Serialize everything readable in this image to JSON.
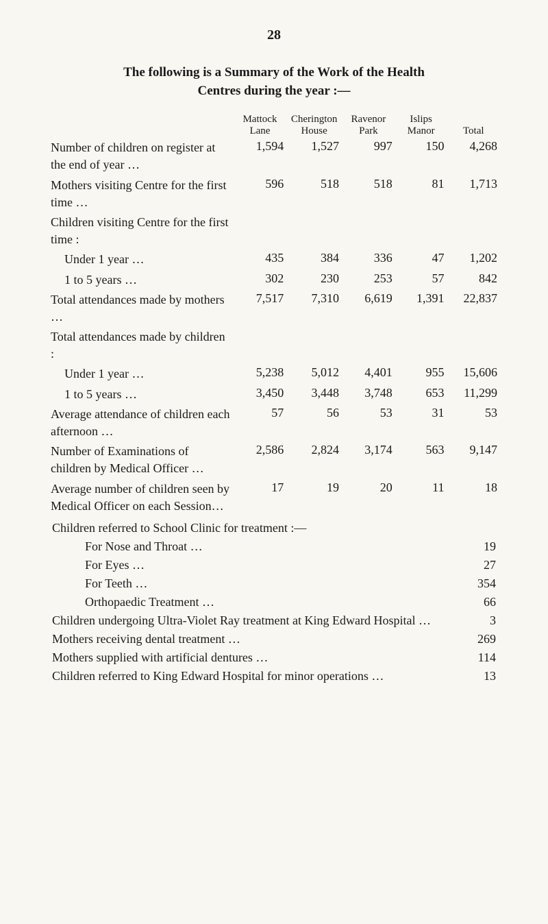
{
  "page_number": "28",
  "heading": {
    "line1": "The following is a Summary of the Work of the Health",
    "line2": "Centres during the year :—"
  },
  "columns": [
    {
      "line1": "Mattock",
      "line2": "Lane"
    },
    {
      "line1": "Cherington",
      "line2": "House"
    },
    {
      "line1": "Ravenor",
      "line2": "Park"
    },
    {
      "line1": "Islips",
      "line2": "Manor"
    },
    {
      "line1": "",
      "line2": "Total"
    }
  ],
  "rows": [
    {
      "label": "Number of children on register at the end of year …",
      "vals": [
        "1,594",
        "1,527",
        "997",
        "150",
        "4,268"
      ]
    },
    {
      "label": "Mothers visiting Centre for the first time …",
      "vals": [
        "596",
        "518",
        "518",
        "81",
        "1,713"
      ]
    },
    {
      "label": "Children visiting Centre for the first time :",
      "vals": [
        "",
        "",
        "",
        "",
        ""
      ]
    },
    {
      "label": "Under 1 year …",
      "indent": true,
      "vals": [
        "435",
        "384",
        "336",
        "47",
        "1,202"
      ]
    },
    {
      "label": "1 to 5 years …",
      "indent": true,
      "vals": [
        "302",
        "230",
        "253",
        "57",
        "842"
      ]
    },
    {
      "label": "Total attendances made by mothers …",
      "vals": [
        "7,517",
        "7,310",
        "6,619",
        "1,391",
        "22,837"
      ]
    },
    {
      "label": "Total attendances made by children :",
      "vals": [
        "",
        "",
        "",
        "",
        ""
      ]
    },
    {
      "label": "Under 1 year …",
      "indent": true,
      "vals": [
        "5,238",
        "5,012",
        "4,401",
        "955",
        "15,606"
      ]
    },
    {
      "label": "1 to 5 years …",
      "indent": true,
      "vals": [
        "3,450",
        "3,448",
        "3,748",
        "653",
        "11,299"
      ]
    },
    {
      "label": "Average attendance of children each afternoon …",
      "vals": [
        "57",
        "56",
        "53",
        "31",
        "53"
      ]
    },
    {
      "label": "Number of Examinations of children by Medical Officer …",
      "vals": [
        "2,586",
        "2,824",
        "3,174",
        "563",
        "9,147"
      ]
    },
    {
      "label": "Average number of children seen by Medical Officer on each Session…",
      "vals": [
        "17",
        "19",
        "20",
        "11",
        "18"
      ]
    }
  ],
  "referred_heading": "Children referred to School Clinic for treatment :—",
  "referred": [
    {
      "label": "For Nose and Throat …",
      "val": "19",
      "indent": true
    },
    {
      "label": "For Eyes …",
      "val": "27",
      "indent": true
    },
    {
      "label": "For Teeth …",
      "val": "354",
      "indent": true
    },
    {
      "label": "Orthopaedic Treatment …",
      "val": "66",
      "indent": true
    },
    {
      "label": "Children undergoing Ultra-Violet Ray treatment at King Edward Hospital …",
      "val": "3",
      "indent": false
    },
    {
      "label": "Mothers receiving dental treatment …",
      "val": "269",
      "indent": false
    },
    {
      "label": "Mothers supplied with artificial dentures …",
      "val": "114",
      "indent": false
    },
    {
      "label": "Children referred to King Edward Hospital for minor operations …",
      "val": "13",
      "indent": false
    }
  ]
}
